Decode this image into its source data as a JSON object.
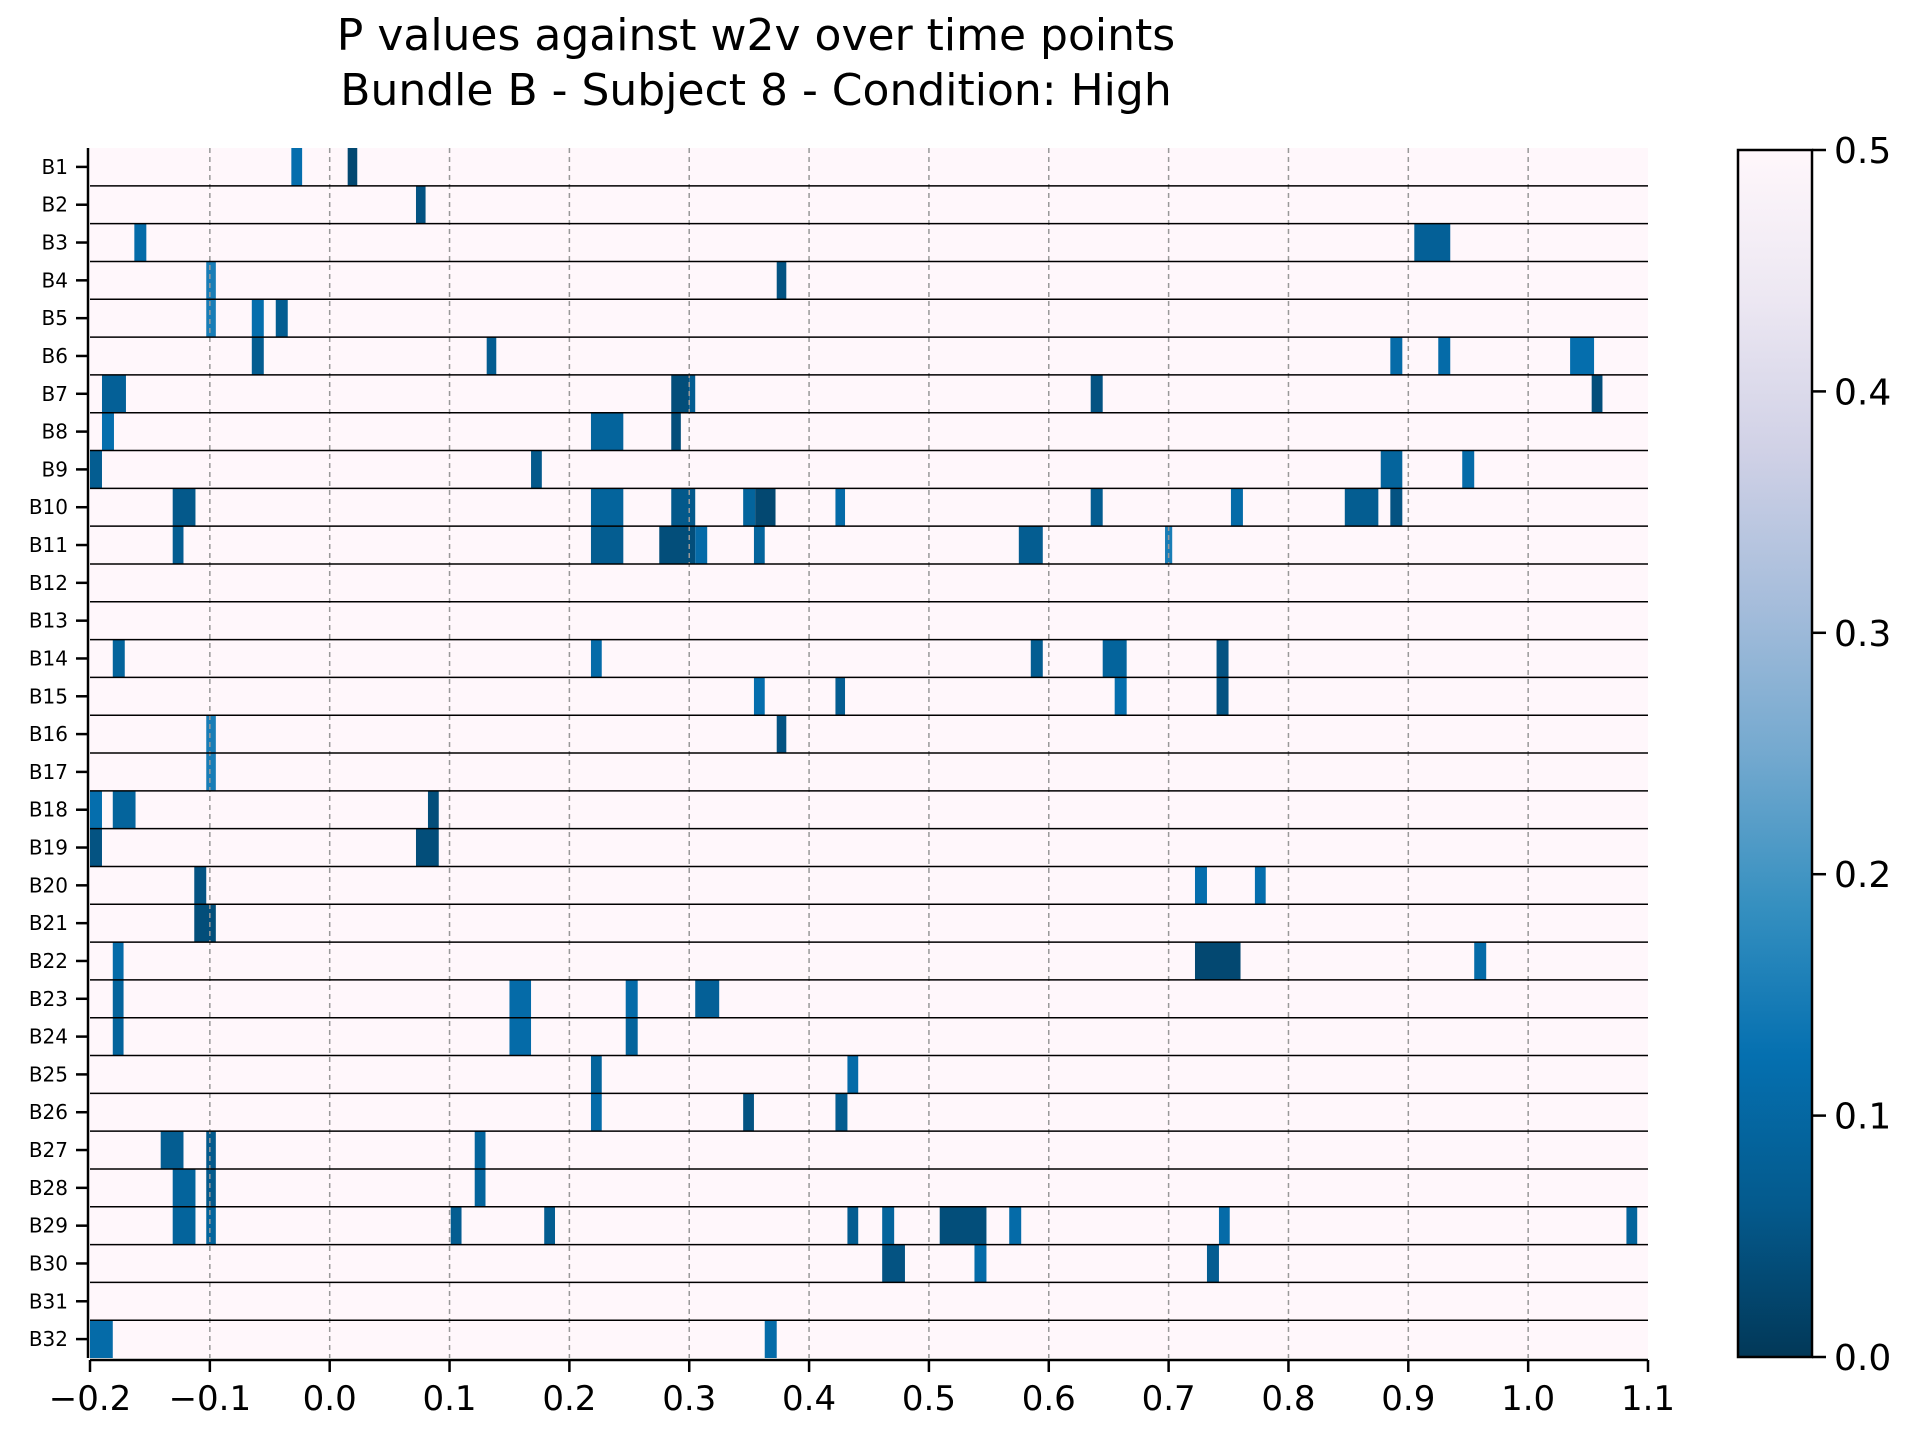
{
  "chart_data": {
    "type": "heatmap",
    "title": "P values against w2v over time points",
    "subtitle": "Bundle B - Subject 8 - Condition: High",
    "xlabel": "",
    "ylabel": "",
    "xlim": [
      -0.2,
      1.1
    ],
    "x_ticks": [
      "−0.2",
      "−0.1",
      "0.0",
      "0.1",
      "0.2",
      "0.3",
      "0.4",
      "0.5",
      "0.6",
      "0.7",
      "0.8",
      "0.9",
      "1.0",
      "1.1"
    ],
    "x_tick_values": [
      -0.2,
      -0.1,
      0.0,
      0.1,
      0.2,
      0.3,
      0.4,
      0.5,
      0.6,
      0.7,
      0.8,
      0.9,
      1.0,
      1.1
    ],
    "vertical_reference_lines": [
      -0.1,
      0.0,
      0.1,
      0.2,
      0.3,
      0.4,
      0.5,
      0.6,
      0.7,
      0.8,
      0.9,
      1.0
    ],
    "colorbar": {
      "range": [
        0.0,
        0.5
      ],
      "ticks": [
        "0.0",
        "0.1",
        "0.2",
        "0.3",
        "0.4",
        "0.5"
      ],
      "tick_values": [
        0.0,
        0.1,
        0.2,
        0.3,
        0.4,
        0.5
      ],
      "colormap": "PuBu_r",
      "colors": [
        "#023858",
        "#045a8d",
        "#0570b0",
        "#3690c0",
        "#74a9cf",
        "#a6bddb",
        "#d0d1e6",
        "#ece7f2",
        "#fff7fb"
      ]
    },
    "background_value": 0.5,
    "rows": [
      {
        "label": "B1",
        "cells": [
          [
            -0.032,
            -0.023,
            0.12
          ],
          [
            0.015,
            0.023,
            0.03
          ]
        ]
      },
      {
        "label": "B2",
        "cells": [
          [
            0.072,
            0.08,
            0.05
          ]
        ]
      },
      {
        "label": "B3",
        "cells": [
          [
            -0.163,
            -0.153,
            0.11
          ],
          [
            0.905,
            0.935,
            0.08
          ]
        ]
      },
      {
        "label": "B4",
        "cells": [
          [
            -0.103,
            -0.095,
            0.15
          ],
          [
            0.373,
            0.381,
            0.05
          ]
        ]
      },
      {
        "label": "B5",
        "cells": [
          [
            -0.103,
            -0.095,
            0.15
          ],
          [
            -0.065,
            -0.055,
            0.12
          ],
          [
            -0.045,
            -0.035,
            0.07
          ]
        ]
      },
      {
        "label": "B6",
        "cells": [
          [
            -0.065,
            -0.055,
            0.07
          ],
          [
            0.131,
            0.139,
            0.07
          ],
          [
            0.885,
            0.895,
            0.11
          ],
          [
            0.925,
            0.935,
            0.11
          ],
          [
            1.035,
            1.055,
            0.12
          ]
        ]
      },
      {
        "label": "B7",
        "cells": [
          [
            -0.19,
            -0.17,
            0.08
          ],
          [
            0.285,
            0.3,
            0.04
          ],
          [
            0.3,
            0.305,
            0.07
          ],
          [
            0.635,
            0.645,
            0.05
          ],
          [
            1.053,
            1.062,
            0.04
          ]
        ]
      },
      {
        "label": "B8",
        "cells": [
          [
            -0.19,
            -0.18,
            0.12
          ],
          [
            0.218,
            0.245,
            0.09
          ],
          [
            0.285,
            0.293,
            0.04
          ]
        ]
      },
      {
        "label": "B9",
        "cells": [
          [
            -0.2,
            -0.19,
            0.07
          ],
          [
            0.168,
            0.177,
            0.06
          ],
          [
            0.877,
            0.895,
            0.09
          ],
          [
            0.945,
            0.955,
            0.11
          ]
        ]
      },
      {
        "label": "B10",
        "cells": [
          [
            -0.131,
            -0.112,
            0.06
          ],
          [
            0.218,
            0.245,
            0.09
          ],
          [
            0.285,
            0.305,
            0.06
          ],
          [
            0.345,
            0.355,
            0.09
          ],
          [
            0.355,
            0.372,
            0.03
          ],
          [
            0.422,
            0.43,
            0.11
          ],
          [
            0.635,
            0.645,
            0.07
          ],
          [
            0.752,
            0.762,
            0.11
          ],
          [
            0.847,
            0.875,
            0.07
          ],
          [
            0.885,
            0.895,
            0.05
          ]
        ]
      },
      {
        "label": "B11",
        "cells": [
          [
            -0.131,
            -0.122,
            0.07
          ],
          [
            0.218,
            0.245,
            0.07
          ],
          [
            0.275,
            0.305,
            0.04
          ],
          [
            0.305,
            0.315,
            0.11
          ],
          [
            0.354,
            0.363,
            0.09
          ],
          [
            0.575,
            0.595,
            0.07
          ],
          [
            0.697,
            0.703,
            0.15
          ]
        ]
      },
      {
        "label": "B12",
        "cells": []
      },
      {
        "label": "B13",
        "cells": []
      },
      {
        "label": "B14",
        "cells": [
          [
            -0.181,
            -0.171,
            0.09
          ],
          [
            0.218,
            0.227,
            0.11
          ],
          [
            0.585,
            0.595,
            0.07
          ],
          [
            0.645,
            0.665,
            0.09
          ],
          [
            0.74,
            0.75,
            0.05
          ]
        ]
      },
      {
        "label": "B15",
        "cells": [
          [
            0.354,
            0.363,
            0.12
          ],
          [
            0.422,
            0.43,
            0.07
          ],
          [
            0.655,
            0.665,
            0.12
          ],
          [
            0.74,
            0.75,
            0.05
          ]
        ]
      },
      {
        "label": "B16",
        "cells": [
          [
            -0.103,
            -0.095,
            0.15
          ],
          [
            0.373,
            0.381,
            0.05
          ]
        ]
      },
      {
        "label": "B17",
        "cells": [
          [
            -0.103,
            -0.095,
            0.15
          ]
        ]
      },
      {
        "label": "B18",
        "cells": [
          [
            -0.2,
            -0.19,
            0.12
          ],
          [
            -0.181,
            -0.162,
            0.09
          ],
          [
            0.082,
            0.091,
            0.04
          ]
        ]
      },
      {
        "label": "B19",
        "cells": [
          [
            -0.2,
            -0.19,
            0.05
          ],
          [
            0.072,
            0.091,
            0.04
          ]
        ]
      },
      {
        "label": "B20",
        "cells": [
          [
            -0.113,
            -0.103,
            0.05
          ],
          [
            0.722,
            0.732,
            0.12
          ],
          [
            0.772,
            0.781,
            0.12
          ]
        ]
      },
      {
        "label": "B21",
        "cells": [
          [
            -0.113,
            -0.095,
            0.04
          ]
        ]
      },
      {
        "label": "B22",
        "cells": [
          [
            -0.181,
            -0.172,
            0.11
          ],
          [
            0.722,
            0.76,
            0.03
          ],
          [
            0.955,
            0.965,
            0.11
          ]
        ]
      },
      {
        "label": "B23",
        "cells": [
          [
            -0.181,
            -0.172,
            0.09
          ],
          [
            0.15,
            0.168,
            0.11
          ],
          [
            0.247,
            0.257,
            0.11
          ],
          [
            0.305,
            0.325,
            0.08
          ]
        ]
      },
      {
        "label": "B24",
        "cells": [
          [
            -0.181,
            -0.172,
            0.09
          ],
          [
            0.15,
            0.168,
            0.11
          ],
          [
            0.247,
            0.257,
            0.09
          ]
        ]
      },
      {
        "label": "B25",
        "cells": [
          [
            0.218,
            0.227,
            0.09
          ],
          [
            0.432,
            0.441,
            0.11
          ]
        ]
      },
      {
        "label": "B26",
        "cells": [
          [
            0.218,
            0.227,
            0.11
          ],
          [
            0.345,
            0.354,
            0.05
          ],
          [
            0.422,
            0.432,
            0.07
          ]
        ]
      },
      {
        "label": "B27",
        "cells": [
          [
            -0.141,
            -0.122,
            0.07
          ],
          [
            -0.103,
            -0.095,
            0.06
          ],
          [
            0.121,
            0.13,
            0.09
          ]
        ]
      },
      {
        "label": "B28",
        "cells": [
          [
            -0.131,
            -0.112,
            0.09
          ],
          [
            -0.103,
            -0.095,
            0.06
          ],
          [
            0.121,
            0.13,
            0.09
          ]
        ]
      },
      {
        "label": "B29",
        "cells": [
          [
            -0.131,
            -0.112,
            0.09
          ],
          [
            -0.103,
            -0.095,
            0.09
          ],
          [
            0.101,
            0.11,
            0.07
          ],
          [
            0.179,
            0.188,
            0.07
          ],
          [
            0.432,
            0.441,
            0.07
          ],
          [
            0.461,
            0.471,
            0.09
          ],
          [
            0.509,
            0.548,
            0.04
          ],
          [
            0.567,
            0.577,
            0.11
          ],
          [
            0.742,
            0.751,
            0.11
          ],
          [
            1.082,
            1.091,
            0.09
          ]
        ]
      },
      {
        "label": "B30",
        "cells": [
          [
            0.461,
            0.48,
            0.05
          ],
          [
            0.538,
            0.548,
            0.11
          ],
          [
            0.732,
            0.742,
            0.07
          ]
        ]
      },
      {
        "label": "B31",
        "cells": []
      },
      {
        "label": "B32",
        "cells": [
          [
            -0.2,
            -0.181,
            0.11
          ],
          [
            0.363,
            0.373,
            0.11
          ]
        ]
      }
    ]
  }
}
